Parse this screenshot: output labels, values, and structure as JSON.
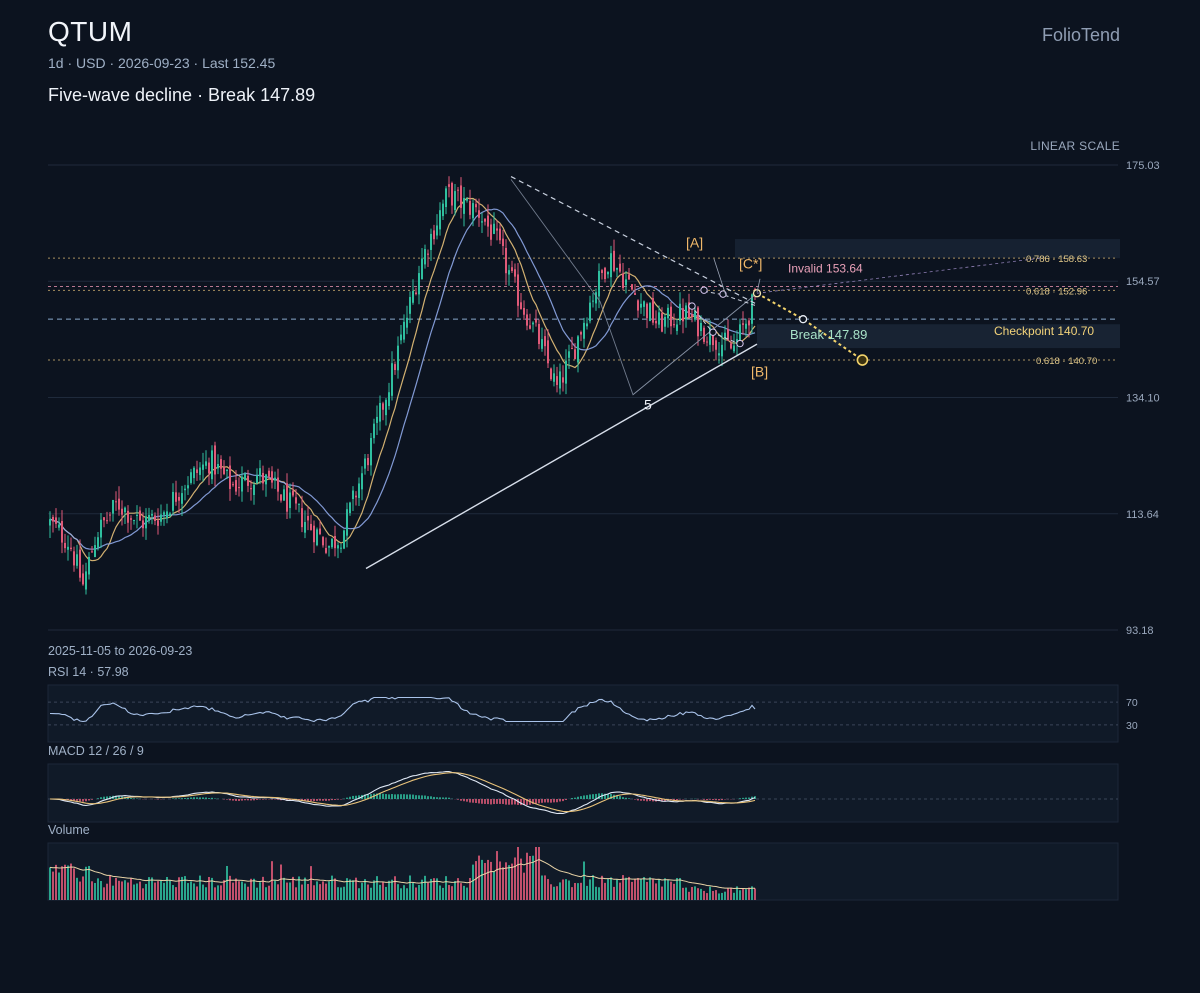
{
  "header": {
    "title": "QTUM",
    "meta": "1d · USD · 2026-09-23 · Last 152.45",
    "subtitle": "Five-wave decline · Break 147.89",
    "brand": "FolioTend",
    "scale_label": "LINEAR SCALE"
  },
  "panels": {
    "range_label": "2025-11-05 to 2026-09-23",
    "rsi_label": "RSI 14 · 57.98",
    "macd_label": "MACD 12 / 26 / 9",
    "volume_label": "Volume"
  },
  "colors": {
    "background": "#0c131f",
    "up": "#2fbf9f",
    "down": "#e05a78",
    "ma_fast": "#e8c27a",
    "ma_slow": "#8ea8e8",
    "projection": "#f2d36b",
    "wave_label": "#f0b86a",
    "invalid": "#e8a0b8",
    "rsi_line": "#a9c3ea",
    "macd_line": "#dfe8f5",
    "signal_line": "#e8c27a"
  },
  "chart_data": {
    "type": "candlestick",
    "date_range": [
      "2025-11-05",
      "2026-09-23"
    ],
    "y_axis": {
      "scale": "linear",
      "ticks": [
        175.03,
        154.57,
        134.1,
        113.64,
        93.18
      ]
    },
    "last_price": 152.45,
    "price_path_close": [
      {
        "date": "2025-11-05",
        "close": 112.0
      },
      {
        "date": "2025-11-14",
        "close": 108.5
      },
      {
        "date": "2025-11-20",
        "close": 101.0
      },
      {
        "date": "2025-11-26",
        "close": 110.0
      },
      {
        "date": "2025-12-06",
        "close": 115.5
      },
      {
        "date": "2025-12-16",
        "close": 112.0
      },
      {
        "date": "2025-12-26",
        "close": 113.5
      },
      {
        "date": "2026-01-05",
        "close": 119.0
      },
      {
        "date": "2026-01-17",
        "close": 123.0
      },
      {
        "date": "2026-01-27",
        "close": 118.5
      },
      {
        "date": "2026-02-08",
        "close": 120.5
      },
      {
        "date": "2026-02-18",
        "close": 117.0
      },
      {
        "date": "2026-03-01",
        "close": 112.5
      },
      {
        "date": "2026-03-12",
        "close": 108.0
      },
      {
        "date": "2026-03-18",
        "close": 110.0
      },
      {
        "date": "2026-03-30",
        "close": 124.0
      },
      {
        "date": "2026-04-11",
        "close": 140.0
      },
      {
        "date": "2026-04-23",
        "close": 158.0
      },
      {
        "date": "2026-05-05",
        "close": 170.0
      },
      {
        "date": "2026-05-13",
        "close": 168.0
      },
      {
        "date": "2026-05-19",
        "close": 167.0
      },
      {
        "date": "2026-05-27",
        "close": 162.0
      },
      {
        "date": "2026-06-06",
        "close": 152.0
      },
      {
        "date": "2026-06-16",
        "close": 144.0
      },
      {
        "date": "2026-06-24",
        "close": 135.5
      },
      {
        "date": "2026-07-02",
        "close": 143.0
      },
      {
        "date": "2026-07-10",
        "close": 152.0
      },
      {
        "date": "2026-07-18",
        "close": 159.0
      },
      {
        "date": "2026-07-28",
        "close": 153.0
      },
      {
        "date": "2026-08-09",
        "close": 147.0
      },
      {
        "date": "2026-08-21",
        "close": 149.0
      },
      {
        "date": "2026-09-02",
        "close": 145.0
      },
      {
        "date": "2026-09-12",
        "close": 142.5
      },
      {
        "date": "2026-09-18",
        "close": 147.5
      },
      {
        "date": "2026-09-23",
        "close": 152.45
      }
    ],
    "levels": [
      {
        "label": "Invalid 153.64",
        "price": 153.64
      },
      {
        "label": "Break 147.89",
        "price": 147.89
      },
      {
        "label": "Checkpoint 140.70",
        "price": 140.7
      }
    ],
    "fib_levels": [
      {
        "label": "0.786 · 158.63",
        "price": 158.63
      },
      {
        "label": "0.618 · 152.96",
        "price": 152.96
      },
      {
        "label": "0.618 · 140.70",
        "price": 140.7
      }
    ],
    "wave_labels": [
      "[A]",
      "[B]",
      "[C*]",
      "5"
    ],
    "projection": [
      {
        "date": "2026-09-23",
        "price": 152.45
      },
      {
        "date": "2026-10-14",
        "price": 147.89
      },
      {
        "date": "2026-11-10",
        "price": 140.7
      }
    ],
    "rsi": {
      "period": 14,
      "last": 57.98,
      "levels": [
        70,
        30
      ]
    },
    "macd": {
      "fast": 12,
      "slow": 26,
      "signal": 9
    }
  }
}
